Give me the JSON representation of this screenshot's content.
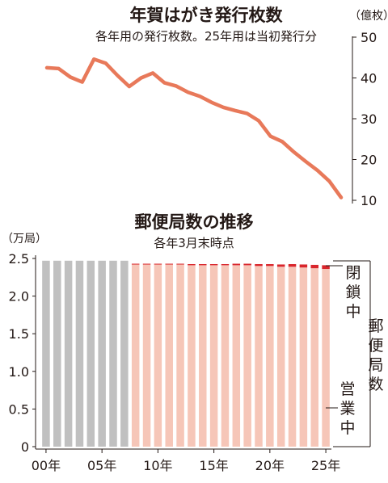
{
  "chart_data": [
    {
      "type": "line",
      "title": "年賀はがき発行枚数",
      "subtitle": "各年用の発行枚数。25年用は当初発行分",
      "unit_label": "（億枚）",
      "ylim": [
        10,
        50
      ],
      "y_ticks": [
        "10",
        "20",
        "30",
        "40",
        "50"
      ],
      "grid": false,
      "color": "#e8795a",
      "series": [
        {
          "x": [
            2000,
            2001,
            2002,
            2003,
            2004,
            2005,
            2006,
            2007,
            2008,
            2009,
            2010,
            2011,
            2012,
            2013,
            2014,
            2015,
            2016,
            2017,
            2018,
            2019,
            2020,
            2021,
            2022,
            2023,
            2024,
            2025
          ],
          "values": [
            42.5,
            42.3,
            40.2,
            39.0,
            44.6,
            43.6,
            40.6,
            37.9,
            40.0,
            41.2,
            38.8,
            38.0,
            36.5,
            35.5,
            34.0,
            32.8,
            32.0,
            31.3,
            29.5,
            25.7,
            24.4,
            21.8,
            19.5,
            17.3,
            14.7,
            10.7
          ]
        }
      ]
    },
    {
      "type": "bar",
      "title": "郵便局数の推移",
      "subtitle": "各年3月末時点",
      "unit_label": "（万局）",
      "ylim": [
        0,
        2.5
      ],
      "y_ticks": [
        "0",
        "0.5",
        "1.0",
        "1.5",
        "2.0",
        "2.5"
      ],
      "x_ticks": [
        {
          "label": "00年",
          "year": 2000
        },
        {
          "label": "05年",
          "year": 2005
        },
        {
          "label": "10年",
          "year": 2010
        },
        {
          "label": "15年",
          "year": 2015
        },
        {
          "label": "20年",
          "year": 2020
        },
        {
          "label": "25年",
          "year": 2025
        }
      ],
      "x_start": 2000,
      "x_end": 2025,
      "stacked_labels": {
        "closed": "閉鎖中",
        "operating": "営業中",
        "total": "郵便局数"
      },
      "colors": {
        "pre_privatization": "#c0c0c0",
        "operating": "#f6c6b8",
        "closed": "#d9262c"
      },
      "series": [
        {
          "name": "",
          "x": [
            2000,
            2001,
            2002,
            2003,
            2004,
            2005,
            2006,
            2007
          ],
          "values": [
            2.47,
            2.47,
            2.47,
            2.47,
            2.47,
            2.47,
            2.47,
            2.47
          ]
        },
        {
          "name": "営業中",
          "x": [
            2008,
            2009,
            2010,
            2011,
            2012,
            2013,
            2014,
            2015,
            2016,
            2017,
            2018,
            2019,
            2020,
            2021,
            2022,
            2023,
            2024,
            2025
          ],
          "values": [
            2.42,
            2.42,
            2.42,
            2.42,
            2.42,
            2.41,
            2.41,
            2.41,
            2.41,
            2.41,
            2.41,
            2.4,
            2.4,
            2.39,
            2.39,
            2.38,
            2.37,
            2.36
          ]
        },
        {
          "name": "閉鎖中",
          "x": [
            2008,
            2009,
            2010,
            2011,
            2012,
            2013,
            2014,
            2015,
            2016,
            2017,
            2018,
            2019,
            2020,
            2021,
            2022,
            2023,
            2024,
            2025
          ],
          "values": [
            0.01,
            0.01,
            0.01,
            0.01,
            0.01,
            0.015,
            0.015,
            0.015,
            0.015,
            0.02,
            0.02,
            0.025,
            0.025,
            0.03,
            0.035,
            0.04,
            0.045,
            0.05
          ]
        }
      ]
    }
  ]
}
